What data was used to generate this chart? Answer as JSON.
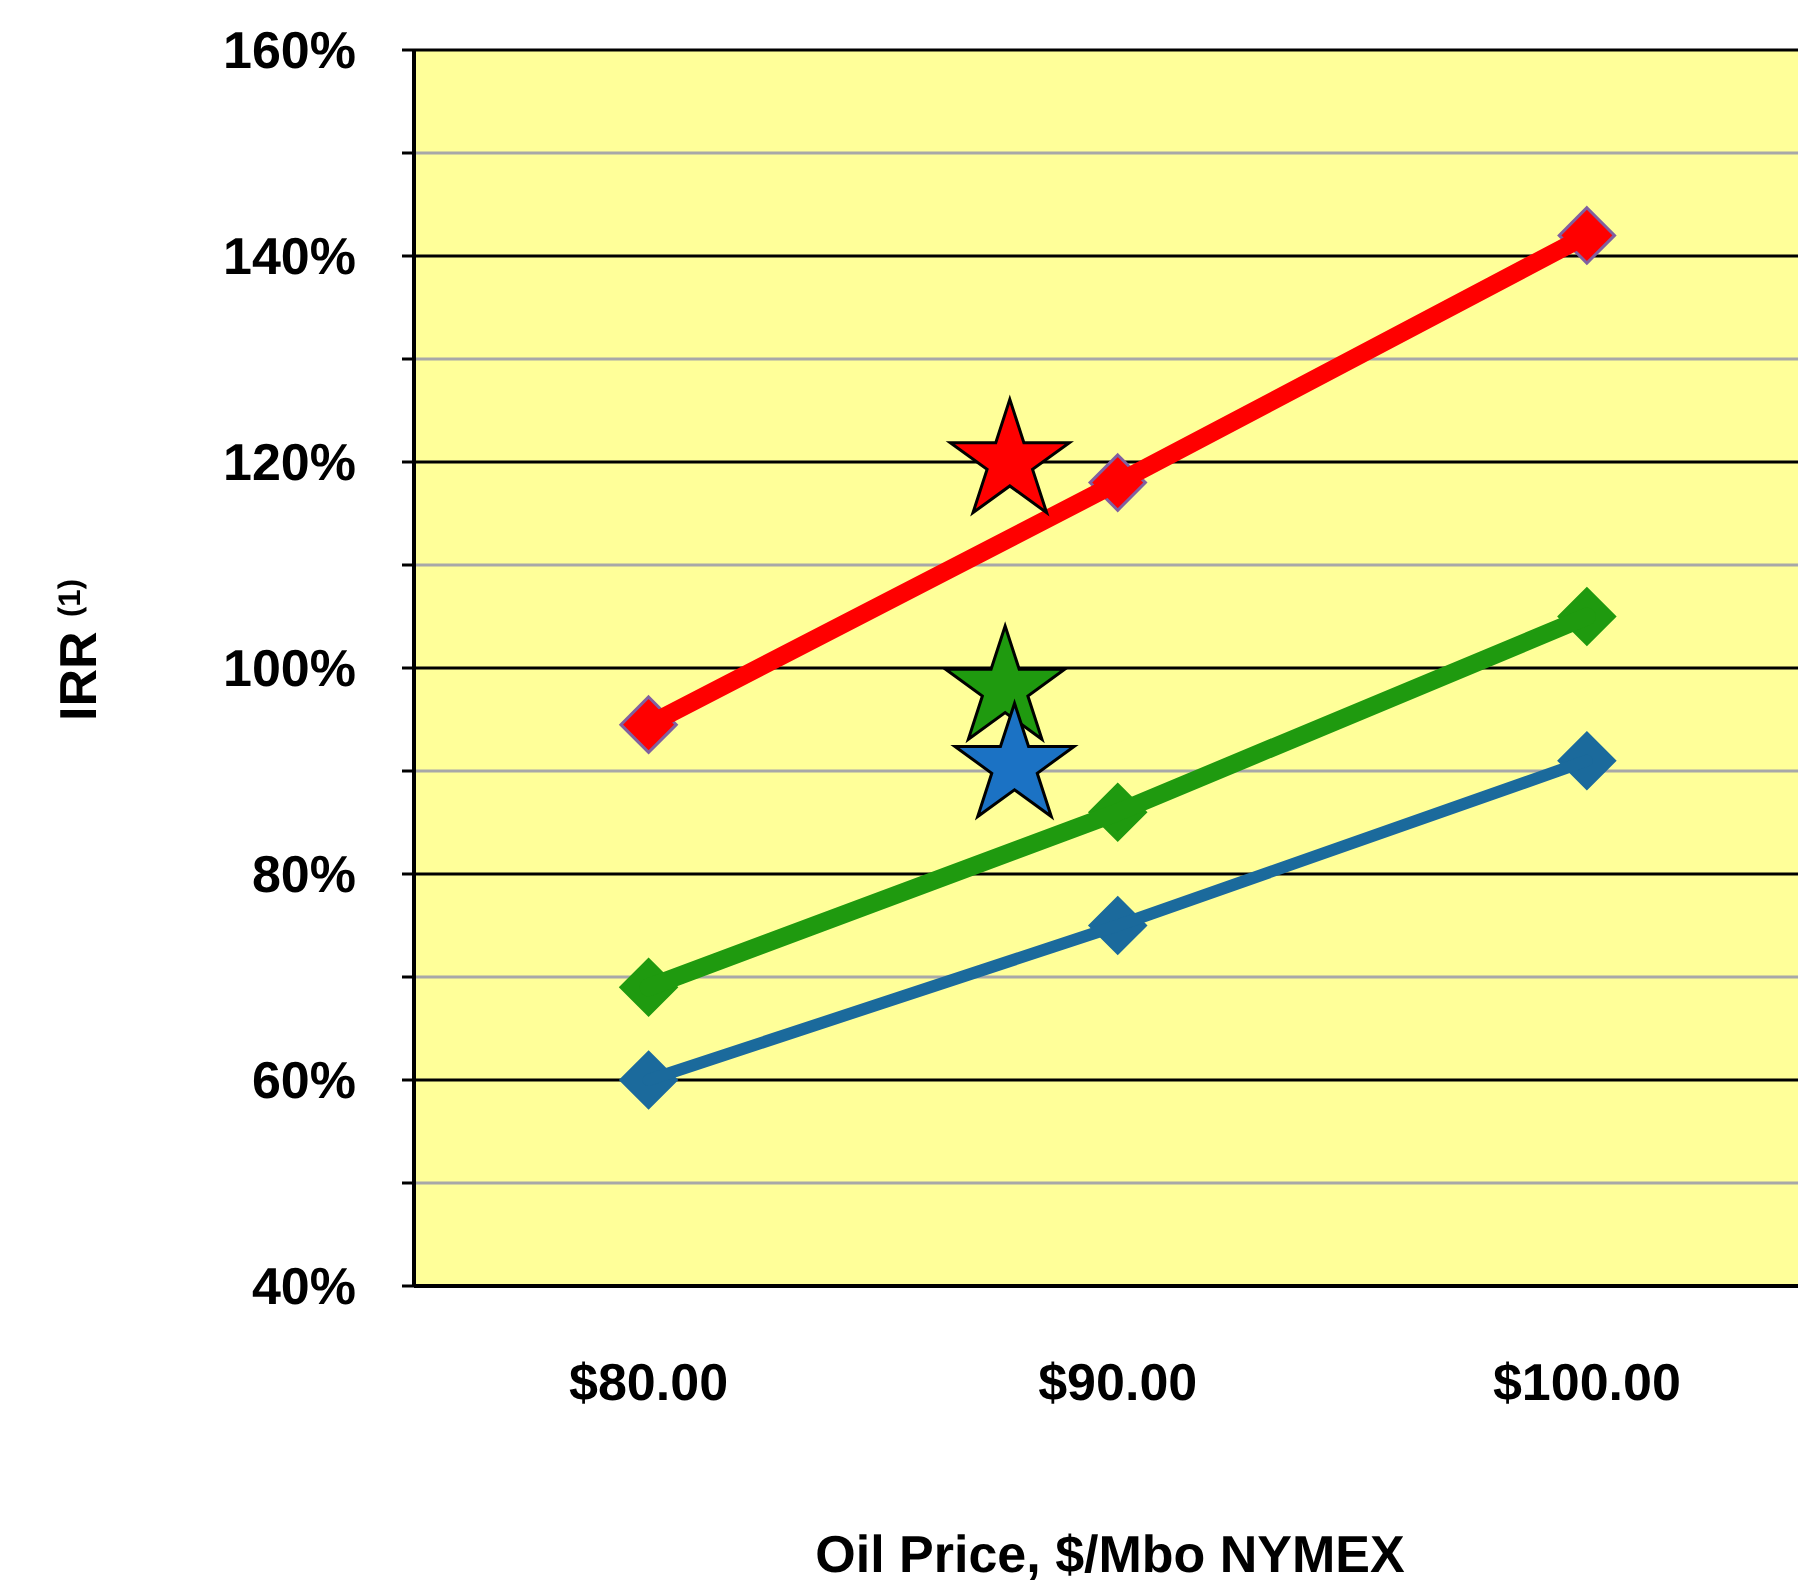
{
  "chart_data": {
    "type": "line",
    "ylabel": "IRR $^{(1)}$",
    "xlabel": "Oil Price, $/Mbo NYMEX",
    "xlim": [
      75,
      104.5
    ],
    "xticks": [
      {
        "value": 80,
        "label": "$80.00"
      },
      {
        "value": 90,
        "label": "$90.00"
      },
      {
        "value": 100,
        "label": "$100.00"
      }
    ],
    "ylim": [
      40,
      160
    ],
    "yticks": [
      {
        "value": 40,
        "label": "40%"
      },
      {
        "value": 50,
        "label": null
      },
      {
        "value": 60,
        "label": "60%"
      },
      {
        "value": 70,
        "label": null
      },
      {
        "value": 80,
        "label": "80%"
      },
      {
        "value": 90,
        "label": null
      },
      {
        "value": 100,
        "label": "100%"
      },
      {
        "value": 110,
        "label": null
      },
      {
        "value": 120,
        "label": "120%"
      },
      {
        "value": 130,
        "label": null
      },
      {
        "value": 140,
        "label": "140%"
      },
      {
        "value": 150,
        "label": null
      },
      {
        "value": 160,
        "label": "160%"
      }
    ],
    "grid": "y",
    "marker": "diamond",
    "line_style": "solid",
    "series": [
      {
        "color": "#ff0000",
        "x": [
          80,
          90,
          100
        ],
        "values": [
          94.5,
          118,
          142
        ]
      },
      {
        "color": "#1f9a0f",
        "x": [
          80,
          90,
          100
        ],
        "values": [
          69,
          86,
          105
        ]
      },
      {
        "color": "#1b6a9c",
        "x": [
          80,
          90,
          100
        ],
        "values": [
          60,
          75,
          91
        ]
      },
      {
        "type": "scatter",
        "marker": "star",
        "color": "#ff0000",
        "x": [
          87.7
        ],
        "values": [
          120
        ]
      },
      {
        "type": "scatter",
        "marker": "star",
        "color": "#1f9a0f",
        "x": [
          87.6
        ],
        "values": [
          98
        ]
      },
      {
        "type": "scatter",
        "marker": "star",
        "color": "#1b72c4",
        "x": [
          87.8
        ],
        "values": [
          90.5
        ]
      }
    ]
  }
}
